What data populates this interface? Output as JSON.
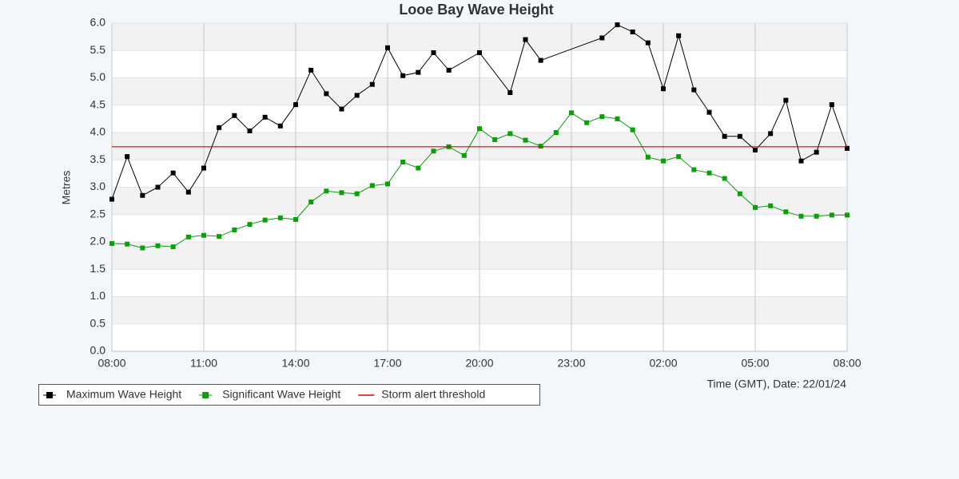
{
  "chart_data": {
    "type": "line",
    "title": "Looe Bay Wave Height",
    "xlabel": "Time (GMT), Date: 22/01/24",
    "ylabel": "Metres",
    "xlim": [
      0,
      24
    ],
    "ylim": [
      0,
      6
    ],
    "xticks": [
      {
        "value": 0,
        "label": "08:00"
      },
      {
        "value": 3,
        "label": "11:00"
      },
      {
        "value": 6,
        "label": "14:00"
      },
      {
        "value": 9,
        "label": "17:00"
      },
      {
        "value": 12,
        "label": "20:00"
      },
      {
        "value": 15,
        "label": "23:00"
      },
      {
        "value": 18,
        "label": "02:00"
      },
      {
        "value": 21,
        "label": "05:00"
      },
      {
        "value": 24,
        "label": "08:00"
      }
    ],
    "yticks": [
      {
        "value": 0,
        "label": "0.0"
      },
      0.5,
      {
        "value": 1,
        "label": "1.0"
      },
      1.5,
      {
        "value": 2,
        "label": "2.0"
      },
      2.5,
      {
        "value": 3,
        "label": "3.0"
      },
      3.5,
      {
        "value": 4,
        "label": "4.0"
      },
      4.5,
      {
        "value": 5,
        "label": "5.0"
      },
      5.5,
      {
        "value": 6,
        "label": "6.0"
      }
    ],
    "grid": true,
    "series": [
      {
        "name": "Maximum Wave Height",
        "color": "#000000",
        "x": [
          0,
          0.5,
          1,
          1.5,
          2,
          2.5,
          3,
          3.5,
          4,
          4.5,
          5,
          5.5,
          6,
          6.5,
          7,
          7.5,
          8,
          8.5,
          9,
          9.5,
          10,
          10.5,
          11,
          12,
          13,
          13.5,
          14,
          16,
          16.5,
          17,
          17.5,
          18,
          18.5,
          19,
          19.5,
          20,
          20.5,
          21,
          21.5,
          22,
          22.5,
          23,
          23.5,
          24
        ],
        "values": [
          2.78,
          3.56,
          2.85,
          3.0,
          3.26,
          2.91,
          3.35,
          4.09,
          4.31,
          4.03,
          4.28,
          4.12,
          4.51,
          5.14,
          4.71,
          4.43,
          4.68,
          4.88,
          5.55,
          5.04,
          5.1,
          5.46,
          5.14,
          5.46,
          4.73,
          5.7,
          5.32,
          5.73,
          5.97,
          5.84,
          5.64,
          4.8,
          5.77,
          4.78,
          4.37,
          3.93,
          3.93,
          3.68,
          3.98,
          4.59,
          3.48,
          3.64,
          4.51,
          3.71
        ]
      },
      {
        "name": "Significant Wave Height",
        "color": "#0aa00a",
        "x": [
          0,
          0.5,
          1,
          1.5,
          2,
          2.5,
          3,
          3.5,
          4,
          4.5,
          5,
          5.5,
          6,
          6.5,
          7,
          7.5,
          8,
          8.5,
          9,
          9.5,
          10,
          10.5,
          11,
          11.5,
          12,
          12.5,
          13,
          13.5,
          14,
          14.5,
          15,
          15.5,
          16,
          16.5,
          17,
          17.5,
          18,
          18.5,
          19,
          19.5,
          20,
          20.5,
          21,
          21.5,
          22,
          22.5,
          23,
          23.5,
          24
        ],
        "values": [
          1.97,
          1.96,
          1.89,
          1.93,
          1.91,
          2.09,
          2.12,
          2.1,
          2.22,
          2.32,
          2.4,
          2.44,
          2.41,
          2.73,
          2.93,
          2.9,
          2.88,
          3.03,
          3.06,
          3.46,
          3.35,
          3.66,
          3.74,
          3.58,
          4.07,
          3.87,
          3.98,
          3.86,
          3.75,
          4.0,
          4.36,
          4.18,
          4.29,
          4.25,
          4.05,
          3.55,
          3.48,
          3.56,
          3.32,
          3.26,
          3.16,
          2.88,
          2.63,
          2.66,
          2.55,
          2.47,
          2.47,
          2.49,
          2.49
        ]
      }
    ],
    "threshold": {
      "name": "Storm alert threshold",
      "color": "#dd0000",
      "value": 3.74
    }
  }
}
